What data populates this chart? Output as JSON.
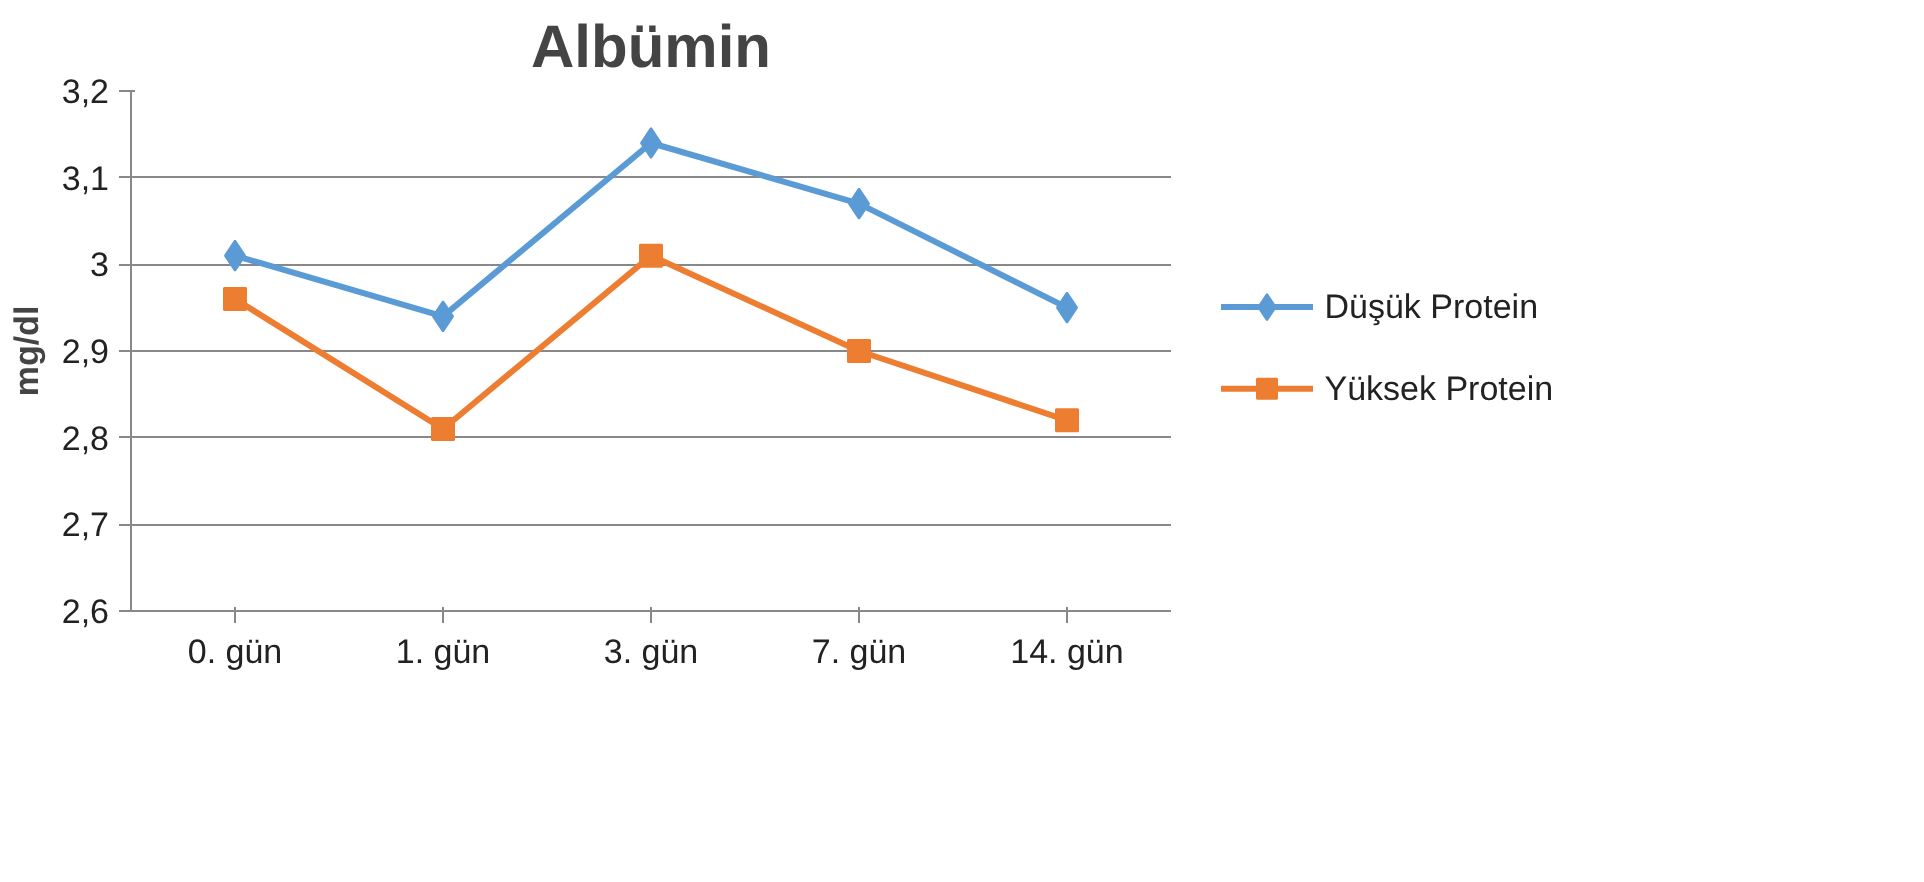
{
  "chart_data": {
    "type": "line",
    "title": "Albümin",
    "ylabel": "mg/dl",
    "categories": [
      "0. gün",
      "1. gün",
      "3. gün",
      "7. gün",
      "14. gün"
    ],
    "series": [
      {
        "name": "Düşük Protein",
        "color": "#5b9bd5",
        "marker": "diamond",
        "values": [
          3.01,
          2.94,
          3.14,
          3.07,
          2.95
        ]
      },
      {
        "name": "Yüksek Protein",
        "color": "#ed7d31",
        "marker": "square",
        "values": [
          2.96,
          2.81,
          3.01,
          2.9,
          2.82
        ]
      }
    ],
    "ylim": [
      2.6,
      3.2
    ],
    "yticks": [
      {
        "value": 2.6,
        "label": "2,6"
      },
      {
        "value": 2.7,
        "label": "2,7"
      },
      {
        "value": 2.8,
        "label": "2,8"
      },
      {
        "value": 2.9,
        "label": "2,9"
      },
      3,
      {
        "value": 3.1,
        "label": "3,1"
      },
      {
        "value": 3.2,
        "label": "3,2"
      }
    ],
    "grid": "y",
    "legend": "right",
    "line_style": "solid"
  }
}
